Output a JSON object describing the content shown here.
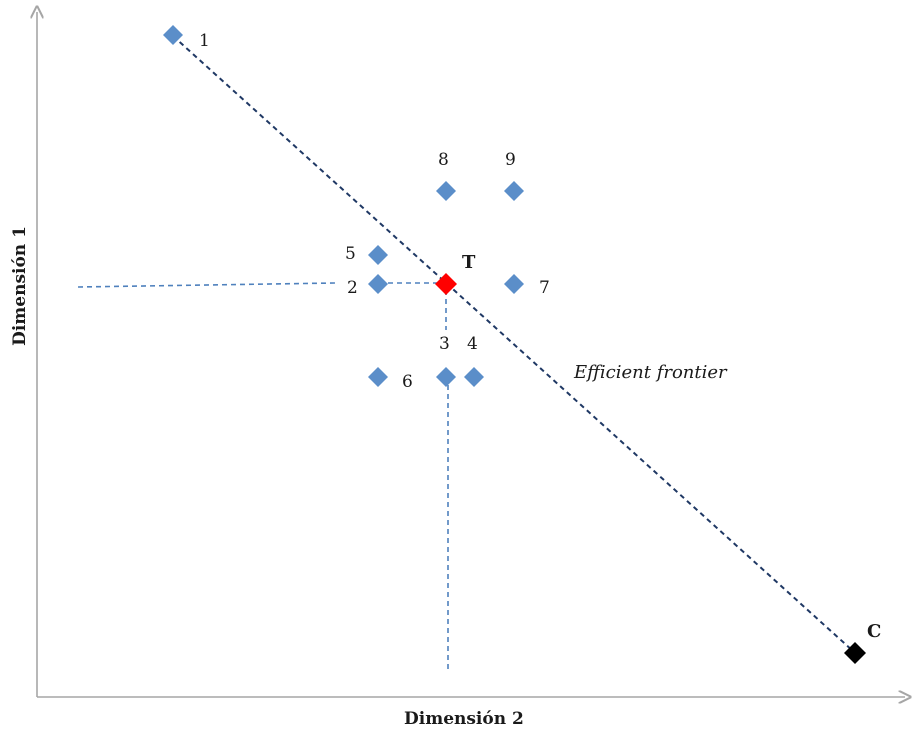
{
  "axes": {
    "x_title": "Dimensión 2",
    "y_title": "Dimensión 1",
    "color": "#a6a6a6"
  },
  "frontier": {
    "label": "Efficient frontier",
    "color": "#1f3864"
  },
  "guides": {
    "color": "#4f81bd"
  },
  "points": [
    {
      "id": "1",
      "label": "1",
      "color": "#5b8ec9"
    },
    {
      "id": "2",
      "label": "2",
      "color": "#5b8ec9"
    },
    {
      "id": "3",
      "label": "3",
      "color": "#5b8ec9"
    },
    {
      "id": "4",
      "label": "4",
      "color": "#5b8ec9"
    },
    {
      "id": "5",
      "label": "5",
      "color": "#5b8ec9"
    },
    {
      "id": "6",
      "label": "6",
      "color": "#5b8ec9"
    },
    {
      "id": "7",
      "label": "7",
      "color": "#5b8ec9"
    },
    {
      "id": "8",
      "label": "8",
      "color": "#5b8ec9"
    },
    {
      "id": "9",
      "label": "9",
      "color": "#5b8ec9"
    },
    {
      "id": "T",
      "label": "T",
      "color": "#ff0000"
    },
    {
      "id": "C",
      "label": "C",
      "color": "#000000"
    }
  ]
}
